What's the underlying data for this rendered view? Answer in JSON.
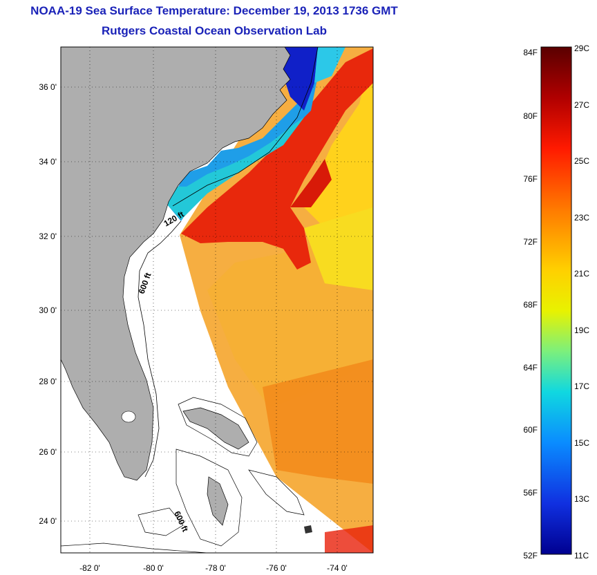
{
  "title": "NOAA-19 Sea Surface Temperature:  December 19, 2013 1736 GMT",
  "subtitle": "Rutgers Coastal Ocean Observation Lab",
  "map": {
    "lat_labels": [
      "36 0'",
      "34 0'",
      "32 0'",
      "30 0'",
      "28 0'",
      "26 0'",
      "24 0'"
    ],
    "lon_labels": [
      "-82 0'",
      "-80 0'",
      "-78 0'",
      "-76 0'",
      "-74 0'"
    ],
    "contour_labels": [
      "120 ft",
      "600 ft",
      "600 ft"
    ]
  },
  "colorbar": {
    "fahrenheit_labels": [
      "84F",
      "80F",
      "76F",
      "72F",
      "68F",
      "64F",
      "60F",
      "56F",
      "52F"
    ],
    "celsius_labels": [
      "29C",
      "27C",
      "25C",
      "23C",
      "21C",
      "19C",
      "17C",
      "15C",
      "13C",
      "11C"
    ],
    "colors": [
      "#5a0000",
      "#b00000",
      "#ff1a00",
      "#ff7a00",
      "#ffd000",
      "#e8f200",
      "#7cf07c",
      "#10d8e0",
      "#0a8cff",
      "#1030e0",
      "#000090"
    ]
  },
  "colors": {
    "land": "#aeaeae",
    "ocean_nodata": "#ffffff",
    "title": "#1a22b8"
  }
}
